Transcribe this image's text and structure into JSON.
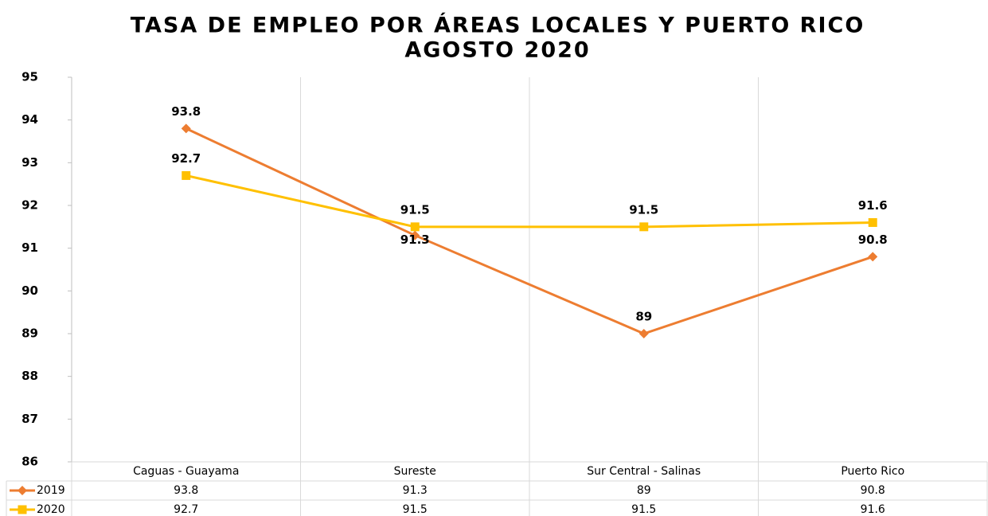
{
  "chart_data": {
    "type": "line",
    "title_lines": [
      "TASA DE EMPLEO POR ÁREAS LOCALES Y PUERTO RICO",
      "AGOSTO 2020"
    ],
    "categories": [
      "Caguas - Guayama",
      "Sureste",
      "Sur Central - Salinas",
      "Puerto Rico"
    ],
    "series": [
      {
        "name": "2019",
        "color": "#ED7D31",
        "marker": "diamond",
        "values": [
          93.8,
          91.3,
          89,
          90.8
        ]
      },
      {
        "name": "2020",
        "color": "#FFC000",
        "marker": "square",
        "values": [
          92.7,
          91.5,
          91.5,
          91.6
        ]
      }
    ],
    "ylim": [
      86,
      95
    ],
    "yticks": [
      86,
      87,
      88,
      89,
      90,
      91,
      92,
      93,
      94,
      95
    ],
    "data_table": true
  }
}
